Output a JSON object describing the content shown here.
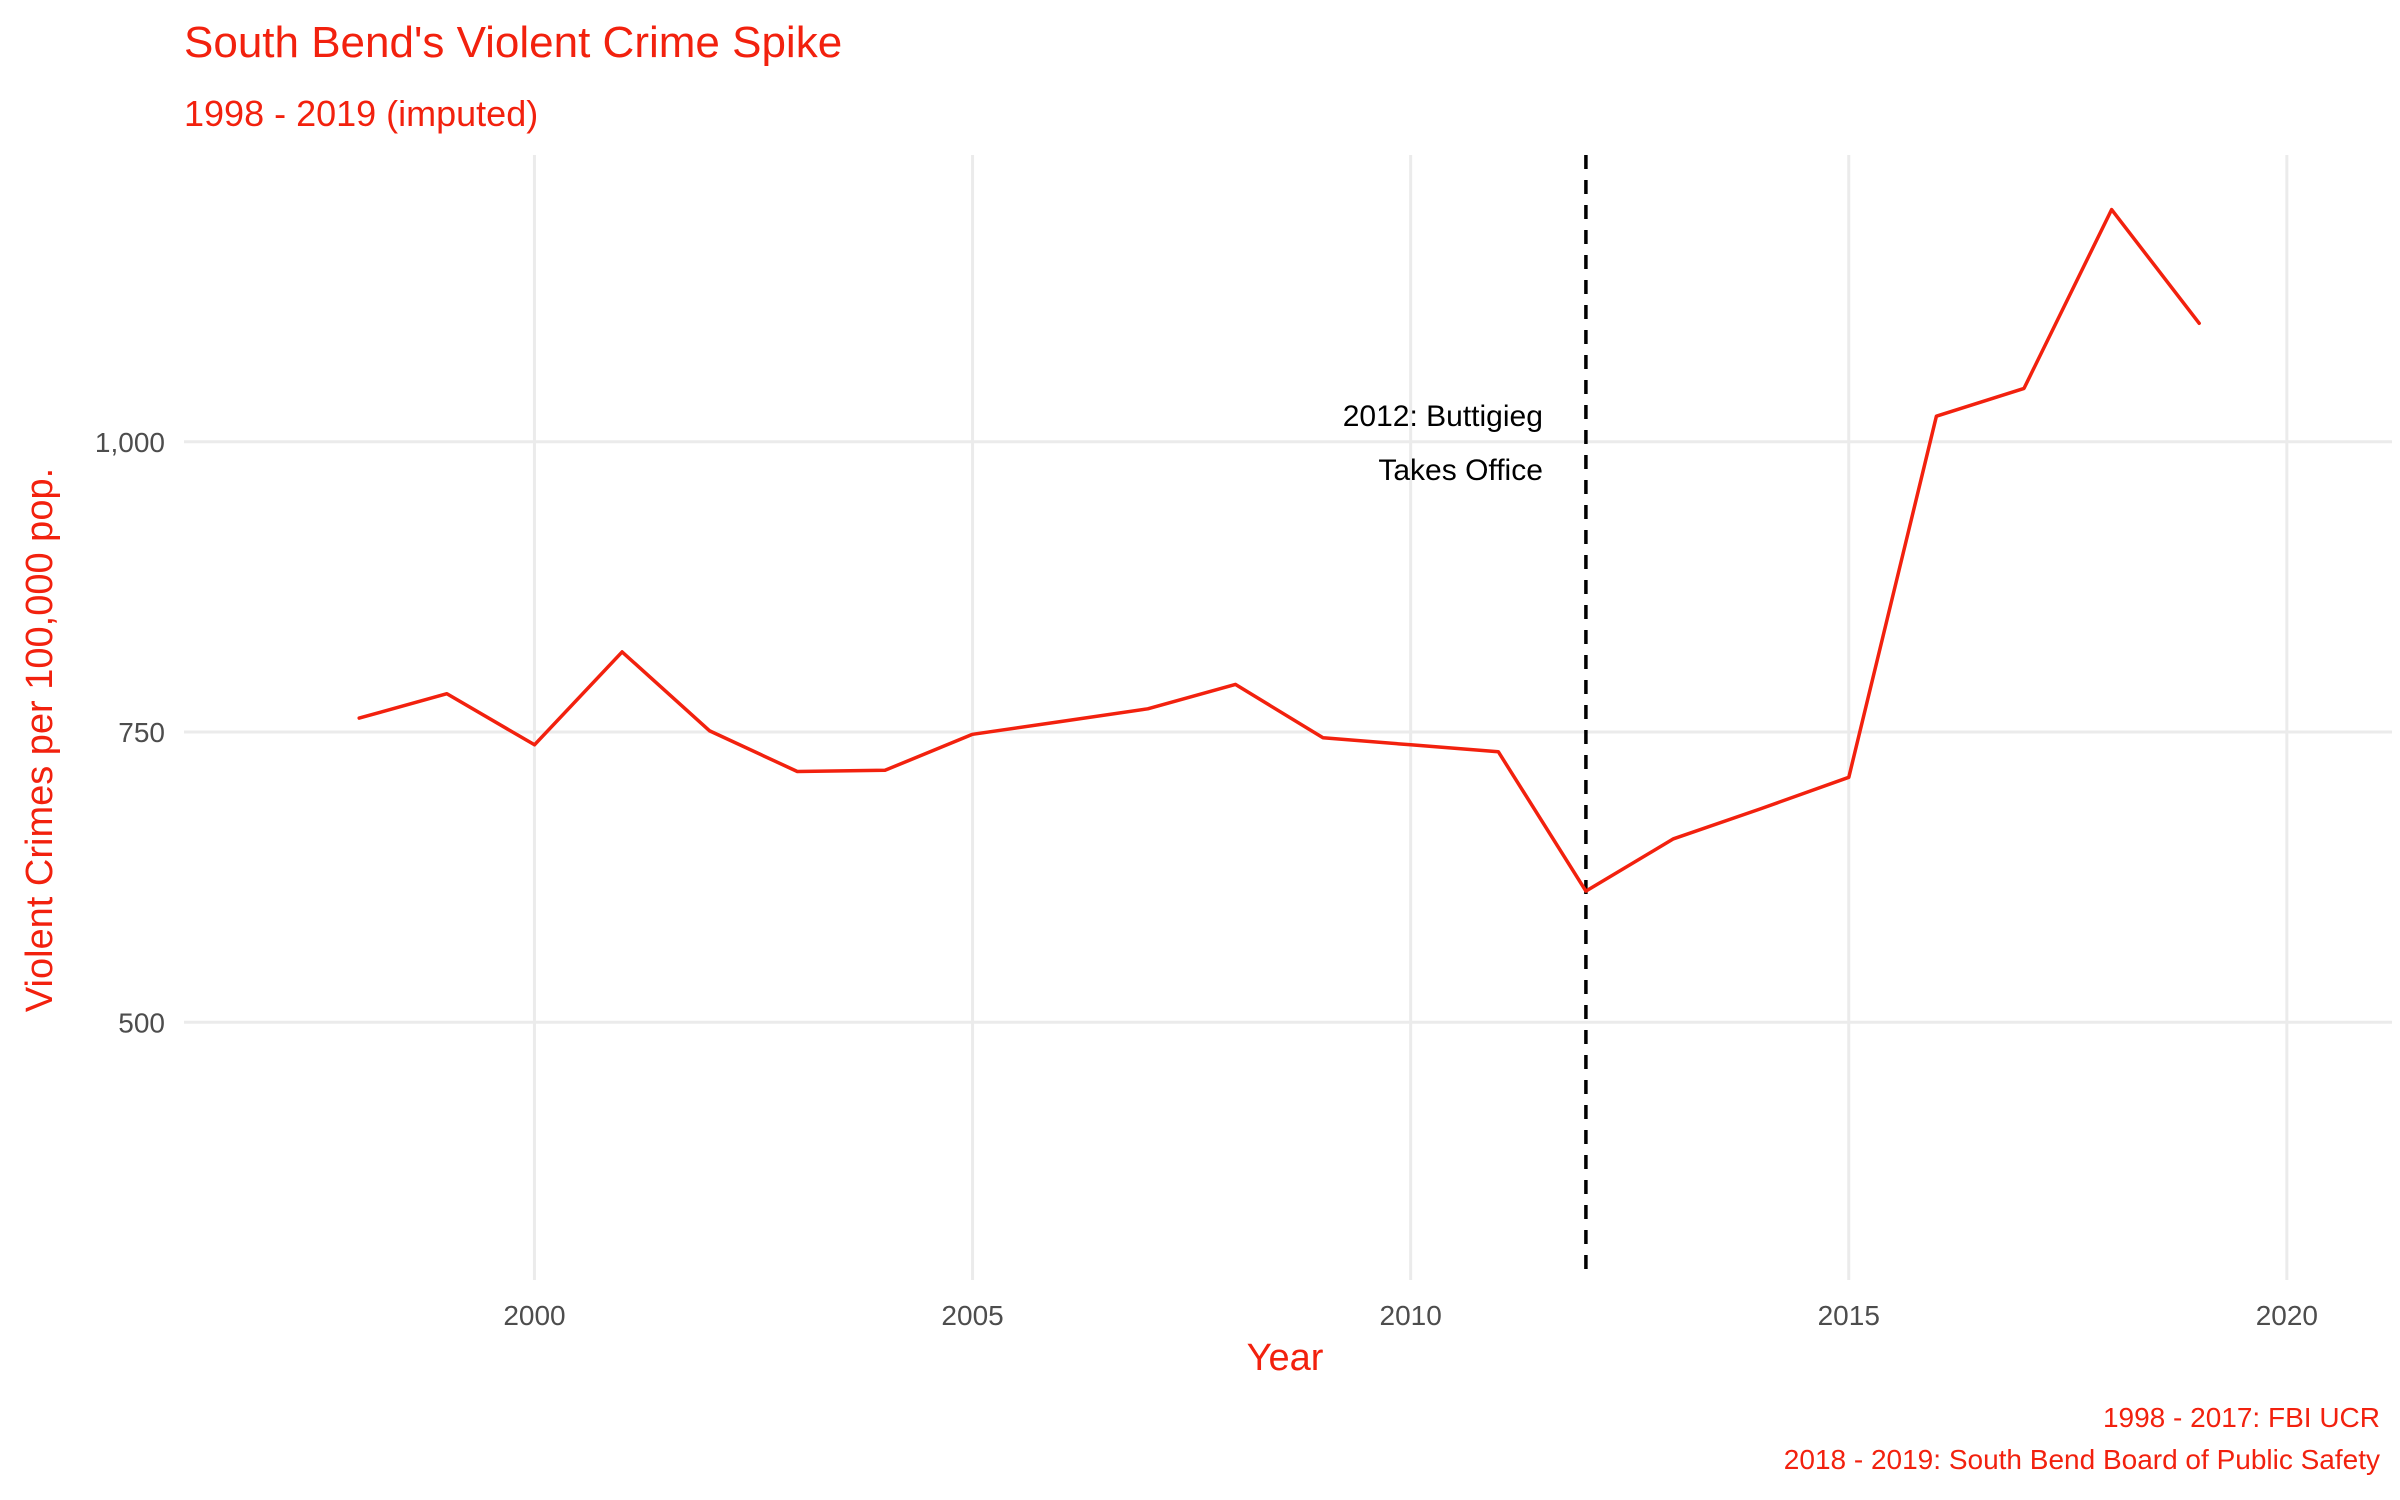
{
  "chart_data": {
    "type": "line",
    "title": "South Bend's Violent Crime Spike",
    "subtitle": "1998 - 2019 (imputed)",
    "xlabel": "Year",
    "ylabel": "Violent Crimes per 100,000 pop.",
    "xlim": [
      1996,
      2021.2
    ],
    "ylim": [
      278,
      1247
    ],
    "x_ticks": [
      2000,
      2005,
      2010,
      2015,
      2020
    ],
    "y_ticks": [
      500,
      750,
      1000
    ],
    "y_tick_labels": [
      "500",
      "750",
      "1,000"
    ],
    "grid": true,
    "series": [
      {
        "color": "#f2210e",
        "x": [
          1998,
          1999,
          2000,
          2001,
          2002,
          2003,
          2004,
          2005,
          2006,
          2007,
          2008,
          2009,
          2010,
          2011,
          2012,
          2013,
          2014,
          2015,
          2016,
          2017,
          2018,
          2019
        ],
        "values": [
          762,
          783,
          739,
          819,
          751,
          716,
          717,
          748,
          759,
          770,
          791,
          745,
          739,
          733,
          613,
          658,
          684,
          711,
          1022,
          1046,
          1200,
          1102
        ]
      }
    ],
    "annotations": [
      {
        "x": 2012,
        "style": "dashed vertical line",
        "color": "#000000",
        "label_lines": [
          "2012: Buttigieg",
          "Takes Office"
        ]
      }
    ],
    "caption_lines": [
      "1998 - 2017: FBI UCR",
      "2018 - 2019: South Bend Board of Public Safety"
    ]
  }
}
